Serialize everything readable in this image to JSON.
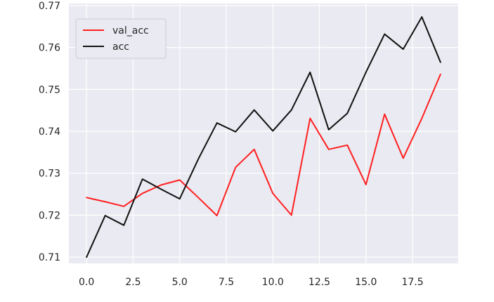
{
  "chart_data": {
    "type": "line",
    "title": "",
    "xlabel": "",
    "ylabel": "",
    "xlim": [
      -0.95,
      19.95
    ],
    "ylim": [
      0.7085,
      0.7705
    ],
    "grid": true,
    "legend_position": "top-left",
    "x_ticks": [
      "0.0",
      "2.5",
      "5.0",
      "7.5",
      "10.0",
      "12.5",
      "15.0",
      "17.5"
    ],
    "x_tick_values": [
      0,
      2.5,
      5,
      7.5,
      10,
      12.5,
      15,
      17.5
    ],
    "y_ticks": [
      "0.71",
      "0.72",
      "0.73",
      "0.74",
      "0.75",
      "0.76",
      "0.77"
    ],
    "y_tick_values": [
      0.71,
      0.72,
      0.73,
      0.74,
      0.75,
      0.76,
      0.77
    ],
    "x": [
      0,
      1,
      2,
      3,
      4,
      5,
      6,
      7,
      8,
      9,
      10,
      11,
      12,
      13,
      14,
      15,
      16,
      17,
      18,
      19
    ],
    "series": [
      {
        "name": "val_acc",
        "color": "#ff2020",
        "values": [
          0.7242,
          0.7232,
          0.7221,
          0.7252,
          0.7272,
          0.7284,
          0.7242,
          0.7199,
          0.7314,
          0.7357,
          0.7252,
          0.72,
          0.7431,
          0.7357,
          0.7367,
          0.7273,
          0.7441,
          0.7336,
          0.7431,
          0.7536
        ]
      },
      {
        "name": "acc",
        "color": "#111111",
        "values": [
          0.71,
          0.7199,
          0.7176,
          0.7286,
          0.7262,
          0.7239,
          0.7334,
          0.742,
          0.7399,
          0.7451,
          0.7401,
          0.7451,
          0.7541,
          0.7404,
          0.7443,
          0.7541,
          0.7632,
          0.7596,
          0.7673,
          0.7565
        ]
      }
    ]
  }
}
